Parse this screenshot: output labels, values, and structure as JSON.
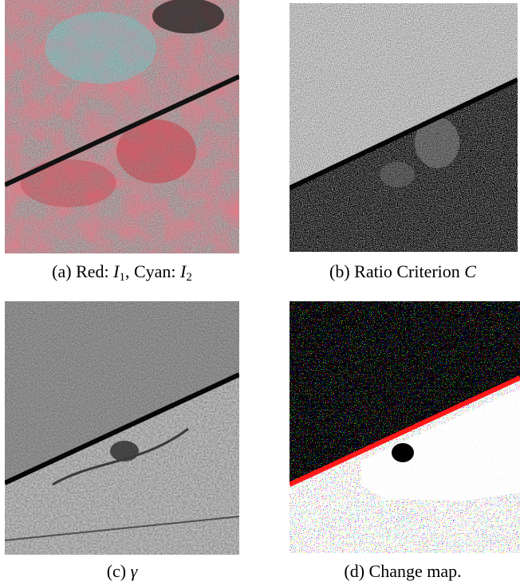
{
  "figure": {
    "panels": [
      {
        "id": "a",
        "caption_prefix": "(a) Red: ",
        "caption_var1": "I",
        "caption_sub1": "1",
        "caption_mid": ", Cyan: ",
        "caption_var2": "I",
        "caption_sub2": "2",
        "description": "",
        "palette": {
          "red": "#c8303c",
          "cyan": "#5fd6d6",
          "dark": "#3a1c22"
        }
      },
      {
        "id": "b",
        "caption_prefix": "(b) Ratio Criterion ",
        "caption_var": "C",
        "palette": {
          "bright": "#d9d9d9",
          "dark": "#121212"
        }
      },
      {
        "id": "c",
        "caption_prefix": "(c) ",
        "caption_var": "γ",
        "palette": {
          "upper": "#2a2a2a",
          "lower": "#6e6e6e"
        }
      },
      {
        "id": "d",
        "caption_text": "(d) Change map.",
        "palette": {
          "change": "#ffffff",
          "nochange": "#000000",
          "line": "#ff1a1a"
        }
      }
    ]
  }
}
